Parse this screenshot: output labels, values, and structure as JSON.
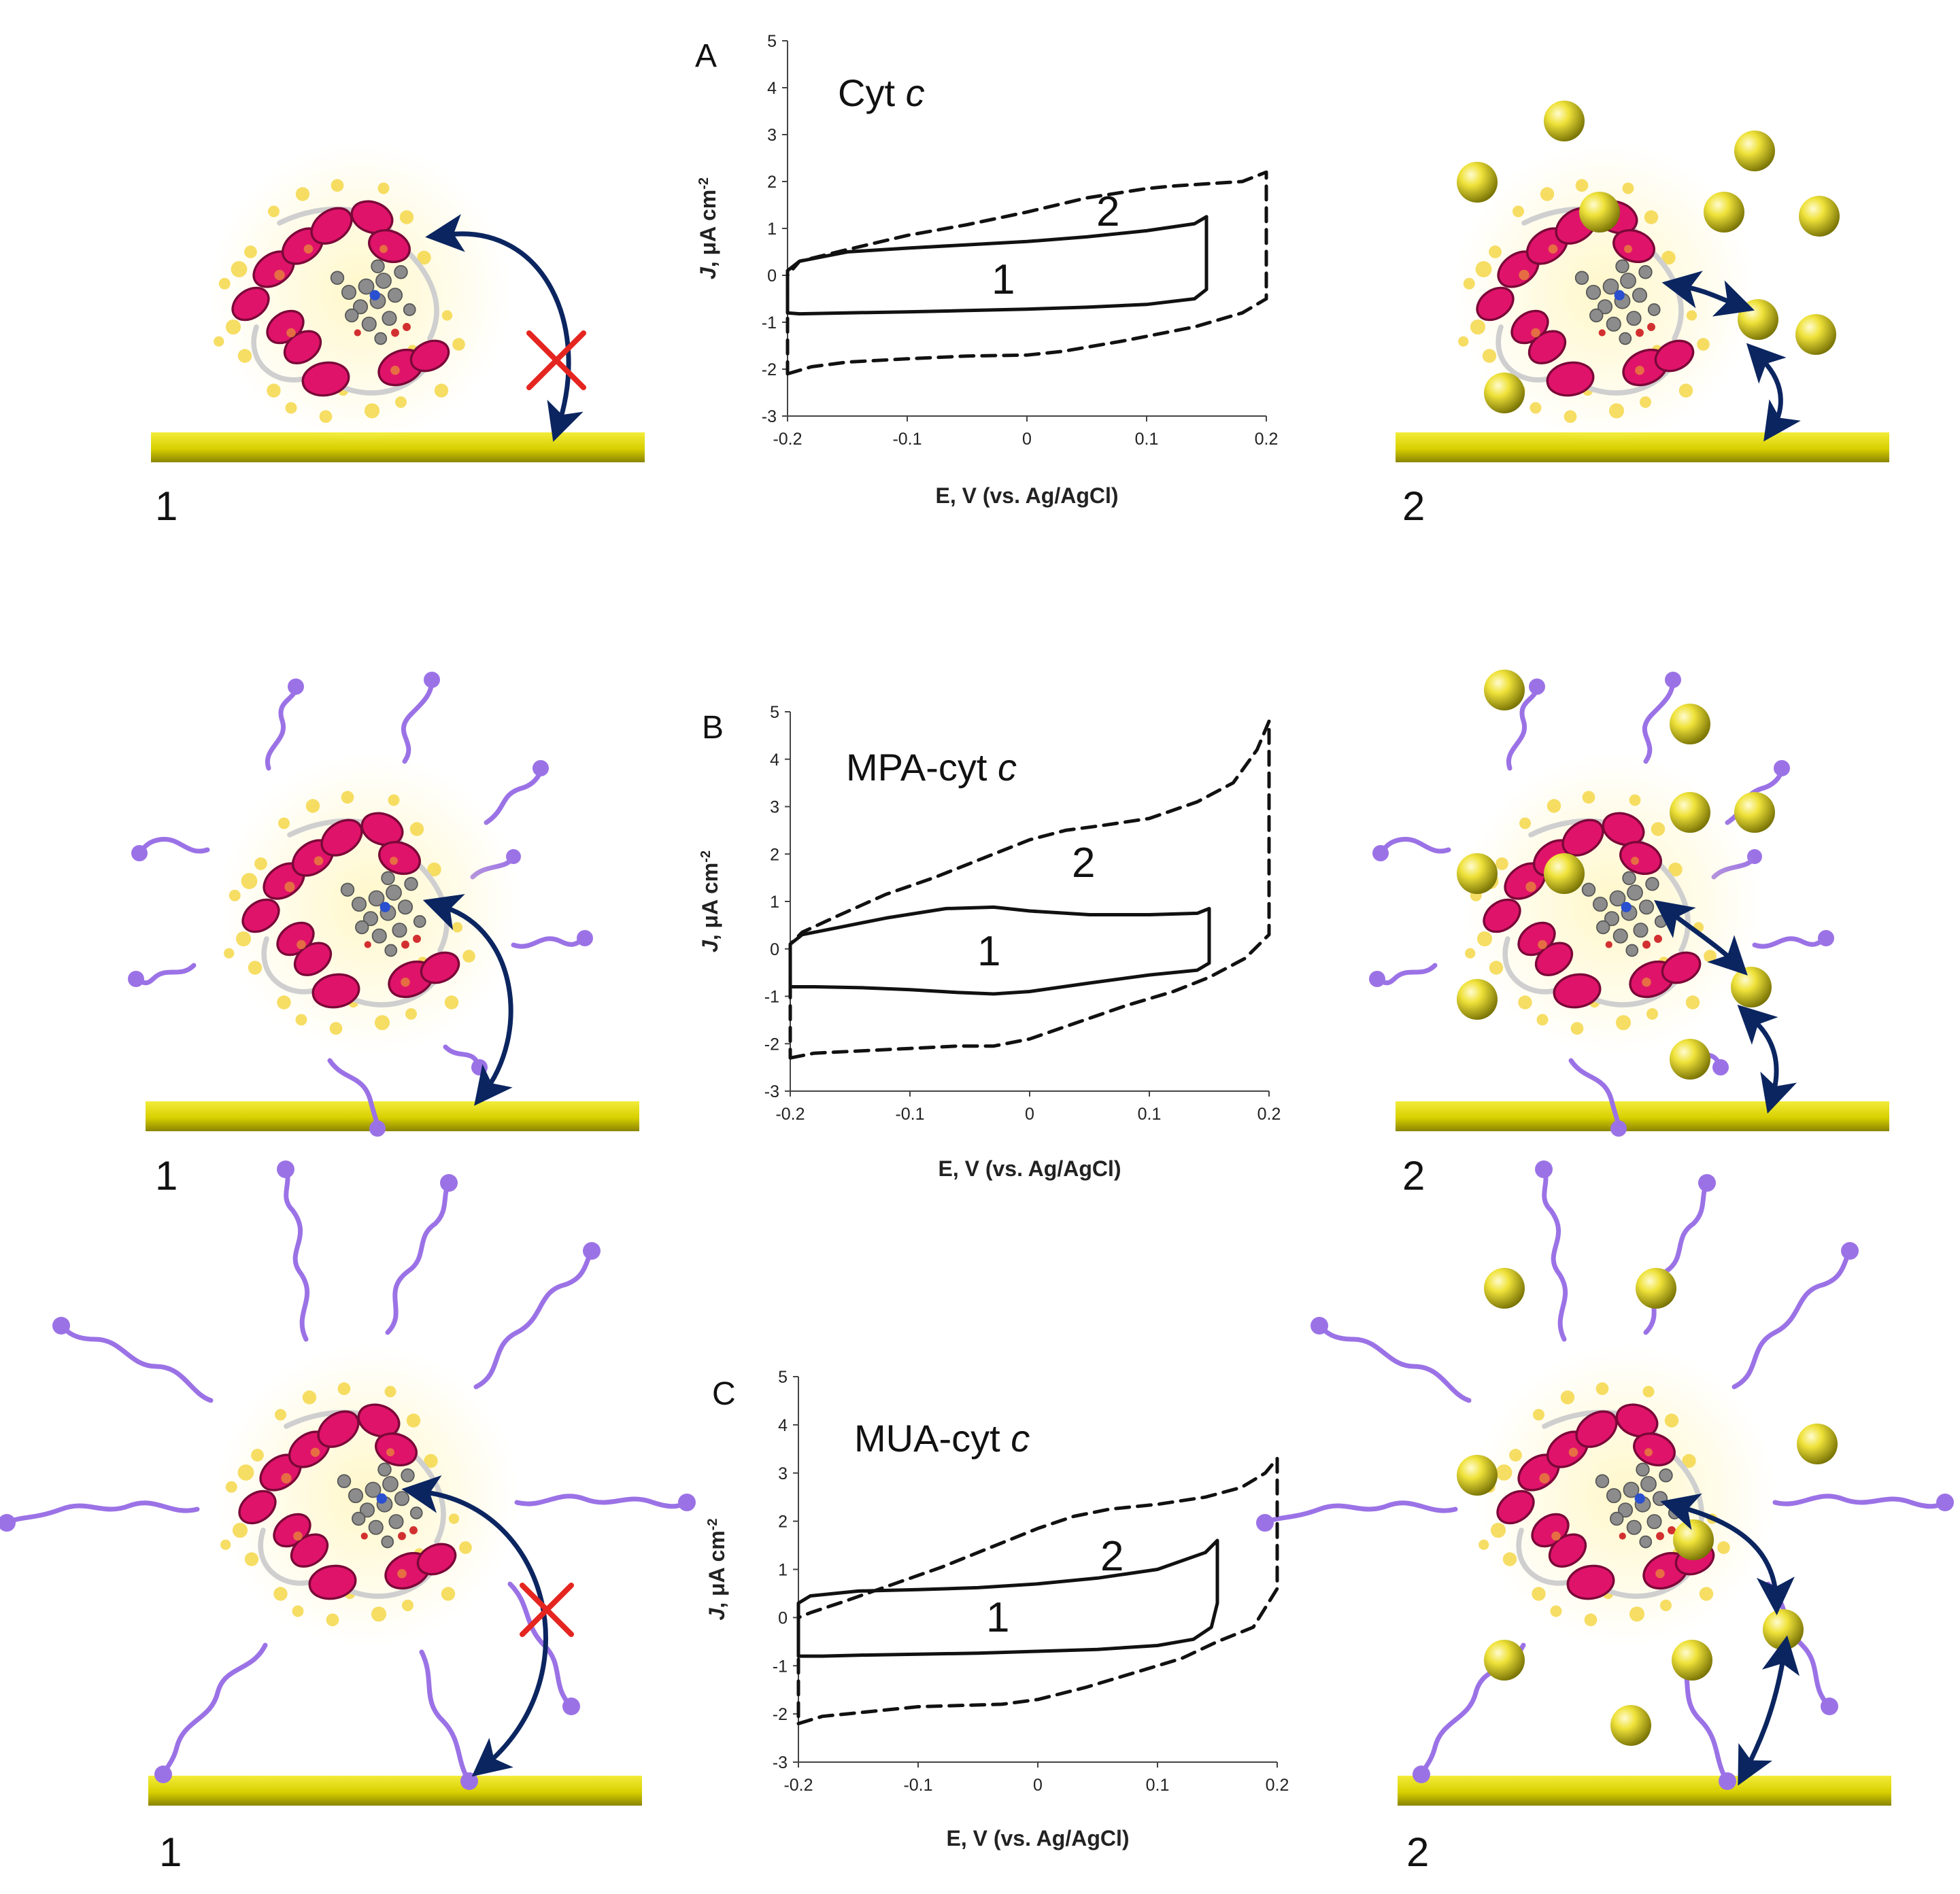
{
  "colors": {
    "electrode": "#d8d000",
    "electrode_dark": "#8a8400",
    "helix": "#e0136a",
    "helix_dark": "#7a0838",
    "side_chains": "#f5d84a",
    "thiol_chain": "#9b72e6",
    "nanoparticle": "#e3d400",
    "arrow": "#0b2560",
    "blocked": "#e52520",
    "curve": "#111111",
    "heme": "#8c8c8c"
  },
  "scheme_numbers": {
    "without_np": "1",
    "with_np": "2"
  },
  "chart_data": [
    {
      "type": "line",
      "panel": "A",
      "title_plain": "Cyt ",
      "title_italic": "c",
      "xlabel": "E, V (vs. Ag/AgCl)",
      "ylabel_italic": "J",
      "ylabel_rest": ", μA cm",
      "ylabel_sup": "-2",
      "xlim": [
        -0.2,
        0.2
      ],
      "ylim": [
        -3,
        5
      ],
      "xticks": [
        -0.2,
        -0.1,
        0,
        0.1,
        0.2
      ],
      "xtick_labels": [
        "-0.2",
        "-0.1",
        "0",
        "0.1",
        "0.2"
      ],
      "yticks": [
        -3,
        -2,
        -1,
        0,
        1,
        2,
        3,
        4,
        5
      ],
      "ytick_labels": [
        "-3",
        "-2",
        "-1",
        "0",
        "1",
        "2",
        "3",
        "4",
        "5"
      ],
      "series": [
        {
          "name": "1",
          "style": "solid",
          "x": [
            -0.2,
            -0.19,
            -0.15,
            -0.1,
            -0.05,
            0,
            0.05,
            0.1,
            0.14,
            0.15,
            0.15,
            0.14,
            0.1,
            0.05,
            0,
            -0.05,
            -0.1,
            -0.15,
            -0.19,
            -0.2,
            -0.2
          ],
          "y": [
            -0.8,
            -0.82,
            -0.8,
            -0.78,
            -0.75,
            -0.72,
            -0.68,
            -0.62,
            -0.5,
            -0.3,
            1.25,
            1.1,
            0.95,
            0.82,
            0.72,
            0.65,
            0.58,
            0.5,
            0.3,
            0.1,
            -0.8
          ]
        },
        {
          "name": "2",
          "style": "dashed",
          "x": [
            -0.2,
            -0.18,
            -0.15,
            -0.1,
            -0.05,
            0,
            0.03,
            0.08,
            0.14,
            0.18,
            0.2,
            0.2,
            0.18,
            0.15,
            0.12,
            0.1,
            0.05,
            0,
            -0.05,
            -0.1,
            -0.15,
            -0.19,
            -0.2,
            -0.2
          ],
          "y": [
            -2.1,
            -1.95,
            -1.85,
            -1.78,
            -1.72,
            -1.7,
            -1.62,
            -1.4,
            -1.1,
            -0.8,
            -0.5,
            2.2,
            2.0,
            1.95,
            1.9,
            1.85,
            1.65,
            1.35,
            1.08,
            0.85,
            0.55,
            0.3,
            0.0,
            -2.1
          ]
        }
      ]
    },
    {
      "type": "line",
      "panel": "B",
      "title_plain": "MPA-cyt ",
      "title_italic": "c",
      "xlabel": "E, V (vs. Ag/AgCl)",
      "ylabel_italic": "J",
      "ylabel_rest": ", μA cm",
      "ylabel_sup": "-2",
      "xlim": [
        -0.2,
        0.2
      ],
      "ylim": [
        -3,
        5
      ],
      "xticks": [
        -0.2,
        -0.1,
        0,
        0.1,
        0.2
      ],
      "xtick_labels": [
        "-0.2",
        "-0.1",
        "0",
        "0.1",
        "0.2"
      ],
      "yticks": [
        -3,
        -2,
        -1,
        0,
        1,
        2,
        3,
        4,
        5
      ],
      "ytick_labels": [
        "-3",
        "-2",
        "-1",
        "0",
        "1",
        "2",
        "3",
        "4",
        "5"
      ],
      "series": [
        {
          "name": "1",
          "style": "solid",
          "x": [
            -0.2,
            -0.18,
            -0.14,
            -0.1,
            -0.06,
            -0.03,
            0,
            0.05,
            0.1,
            0.14,
            0.15,
            0.15,
            0.14,
            0.1,
            0.05,
            0,
            -0.03,
            -0.07,
            -0.12,
            -0.16,
            -0.19,
            -0.2,
            -0.2
          ],
          "y": [
            -0.8,
            -0.8,
            -0.82,
            -0.86,
            -0.92,
            -0.95,
            -0.9,
            -0.72,
            -0.55,
            -0.45,
            -0.3,
            0.85,
            0.75,
            0.72,
            0.72,
            0.8,
            0.88,
            0.85,
            0.65,
            0.45,
            0.3,
            0.1,
            -0.8
          ]
        },
        {
          "name": "2",
          "style": "dashed",
          "x": [
            -0.2,
            -0.18,
            -0.14,
            -0.1,
            -0.06,
            -0.03,
            0,
            0.04,
            0.08,
            0.12,
            0.15,
            0.18,
            0.2,
            0.2,
            0.19,
            0.17,
            0.14,
            0.1,
            0.06,
            0.03,
            0,
            -0.04,
            -0.08,
            -0.12,
            -0.16,
            -0.19,
            -0.2,
            -0.2
          ],
          "y": [
            -2.3,
            -2.2,
            -2.15,
            -2.1,
            -2.05,
            -2.05,
            -1.9,
            -1.55,
            -1.2,
            -0.9,
            -0.6,
            -0.2,
            0.3,
            4.8,
            4.2,
            3.5,
            3.1,
            2.75,
            2.6,
            2.5,
            2.3,
            1.9,
            1.5,
            1.15,
            0.7,
            0.35,
            0.1,
            -2.3
          ]
        }
      ]
    },
    {
      "type": "line",
      "panel": "C",
      "title_plain": "MUA-cyt ",
      "title_italic": "c",
      "xlabel": "E, V (vs. Ag/AgCl)",
      "ylabel_italic": "J",
      "ylabel_rest": ", μA cm",
      "ylabel_sup": "-2",
      "xlim": [
        -0.2,
        0.2
      ],
      "ylim": [
        -3,
        5
      ],
      "xticks": [
        -0.2,
        -0.1,
        0,
        0.1,
        0.2
      ],
      "xtick_labels": [
        "-0.2",
        "-0.1",
        "0",
        "0.1",
        "0.2"
      ],
      "yticks": [
        -3,
        -2,
        -1,
        0,
        1,
        2,
        3,
        4,
        5
      ],
      "ytick_labels": [
        "-3",
        "-2",
        "-1",
        "0",
        "1",
        "2",
        "3",
        "4",
        "5"
      ],
      "series": [
        {
          "name": "1",
          "style": "solid",
          "x": [
            -0.2,
            -0.18,
            -0.15,
            -0.1,
            -0.05,
            0,
            0.05,
            0.1,
            0.13,
            0.145,
            0.15,
            0.15,
            0.14,
            0.1,
            0.05,
            0,
            -0.05,
            -0.1,
            -0.15,
            -0.19,
            -0.2,
            -0.2
          ],
          "y": [
            -0.8,
            -0.8,
            -0.78,
            -0.76,
            -0.74,
            -0.7,
            -0.66,
            -0.58,
            -0.45,
            -0.2,
            0.3,
            1.6,
            1.35,
            1.0,
            0.82,
            0.7,
            0.62,
            0.58,
            0.55,
            0.45,
            0.3,
            -0.8
          ]
        },
        {
          "name": "2",
          "style": "dashed",
          "x": [
            -0.2,
            -0.18,
            -0.14,
            -0.1,
            -0.06,
            -0.03,
            0,
            0.04,
            0.08,
            0.12,
            0.15,
            0.18,
            0.2,
            0.2,
            0.19,
            0.17,
            0.14,
            0.1,
            0.06,
            0.03,
            0,
            -0.04,
            -0.08,
            -0.12,
            -0.16,
            -0.19,
            -0.2,
            -0.2
          ],
          "y": [
            -2.2,
            -2.05,
            -1.95,
            -1.85,
            -1.82,
            -1.8,
            -1.7,
            -1.45,
            -1.15,
            -0.85,
            -0.5,
            -0.2,
            0.6,
            3.3,
            3.0,
            2.7,
            2.5,
            2.35,
            2.25,
            2.1,
            1.85,
            1.45,
            1.05,
            0.7,
            0.35,
            0.1,
            0.0,
            -2.2
          ]
        }
      ]
    }
  ]
}
